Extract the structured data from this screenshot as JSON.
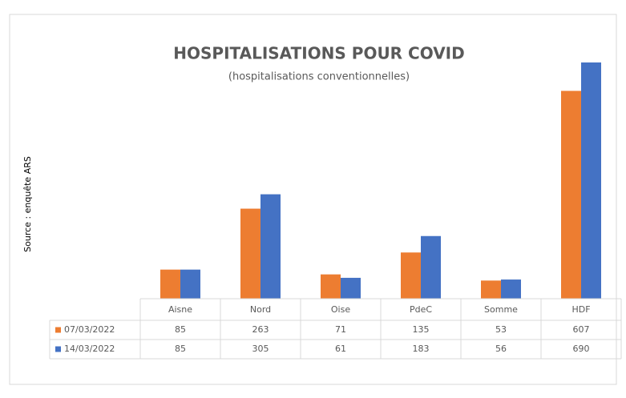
{
  "chart_data": {
    "type": "bar",
    "title": "HOSPITALISATIONS POUR COVID",
    "subtitle": "(hospitalisations conventionnelles)",
    "y_label": "Source : enquête ARS",
    "categories": [
      "Aisne",
      "Nord",
      "Oise",
      "PdeC",
      "Somme",
      "HDF"
    ],
    "series": [
      {
        "name": "07/03/2022",
        "color": "#ed7d31",
        "values": [
          85,
          263,
          71,
          135,
          53,
          607
        ]
      },
      {
        "name": "14/03/2022",
        "color": "#4472c4",
        "values": [
          85,
          305,
          61,
          183,
          56,
          690
        ]
      }
    ],
    "data_table": true
  }
}
